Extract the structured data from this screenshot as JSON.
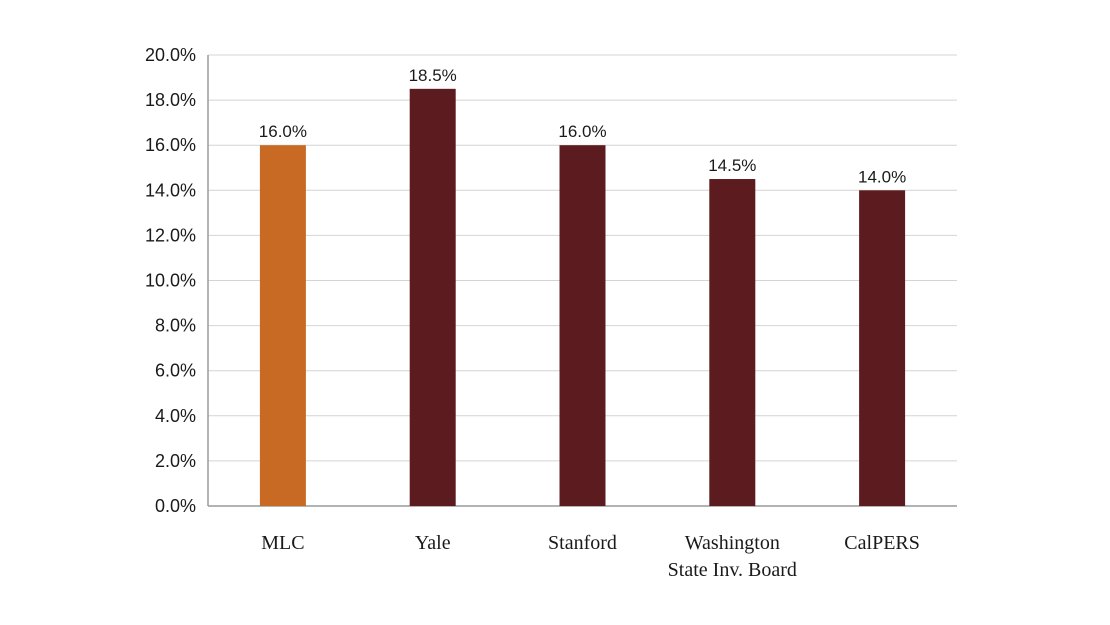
{
  "chart_data": {
    "type": "bar",
    "categories": [
      [
        "MLC"
      ],
      [
        "Yale"
      ],
      [
        "Stanford"
      ],
      [
        "Washington",
        "State Inv. Board"
      ],
      [
        "CalPERS"
      ]
    ],
    "values": [
      16.0,
      18.5,
      16.0,
      14.5,
      14.0
    ],
    "value_labels": [
      "16.0%",
      "18.5%",
      "16.0%",
      "14.5%",
      "14.0%"
    ],
    "bar_colors": [
      "#C96A24",
      "#5C1C1F",
      "#5C1C1F",
      "#5C1C1F",
      "#5C1C1F"
    ],
    "ylim": [
      0,
      20
    ],
    "yticks": [
      0,
      2,
      4,
      6,
      8,
      10,
      12,
      14,
      16,
      18,
      20
    ],
    "ytick_labels": [
      "0.0%",
      "2.0%",
      "4.0%",
      "6.0%",
      "8.0%",
      "10.0%",
      "12.0%",
      "14.0%",
      "16.0%",
      "18.0%",
      "20.0%"
    ],
    "grid": true,
    "title": "",
    "xlabel": "",
    "ylabel": ""
  }
}
